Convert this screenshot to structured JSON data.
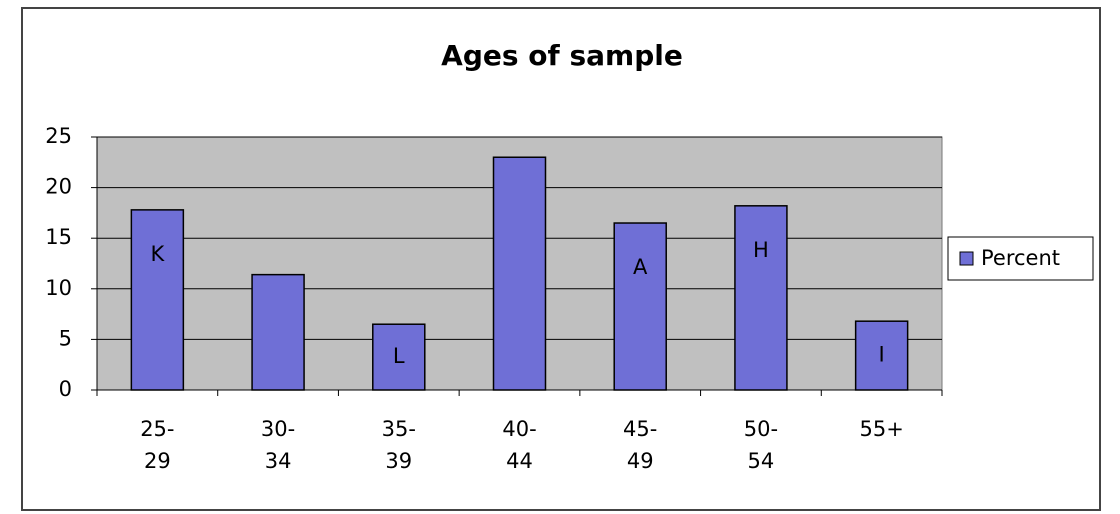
{
  "chart_data": {
    "type": "bar",
    "title": "Ages of sample",
    "categories": [
      "25-\n29",
      "30-\n34",
      "35-\n39",
      "40-\n44",
      "45-\n49",
      "50-\n54",
      "55+"
    ],
    "series": [
      {
        "name": "Percent",
        "color": "#6f6fd6",
        "values": [
          17.8,
          11.4,
          6.5,
          23,
          16.5,
          18.2,
          6.8
        ]
      }
    ],
    "bar_labels": [
      "K",
      null,
      "L",
      null,
      "A",
      "H",
      "I"
    ],
    "ylim": [
      0,
      25
    ],
    "yticks": [
      0,
      5,
      10,
      15,
      20,
      25
    ],
    "grid": true,
    "legend": "right"
  }
}
